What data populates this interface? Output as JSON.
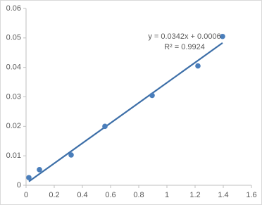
{
  "chart_data": {
    "type": "scatter",
    "x": [
      0.02,
      0.095,
      0.32,
      0.56,
      0.895,
      1.22,
      1.395
    ],
    "series": [
      {
        "color": "#4a7ebb",
        "values": [
          0.0026,
          0.0053,
          0.0103,
          0.02,
          0.0305,
          0.0405,
          0.0505
        ]
      }
    ],
    "xlim": [
      0,
      1.6
    ],
    "xticks": [
      0,
      0.2,
      0.4,
      0.6,
      0.8,
      1,
      1.2,
      1.4,
      1.6
    ],
    "ylim": [
      0,
      0.06
    ],
    "yticks": [
      0,
      0.01,
      0.02,
      0.03,
      0.04,
      0.05,
      0.06
    ],
    "trendline": {
      "slope": 0.0342,
      "intercept": 0.0006,
      "color": "#3d6fa8",
      "equation": "y = 0.0342x + 0.0006",
      "r_squared": "R² = 0.9924"
    }
  }
}
